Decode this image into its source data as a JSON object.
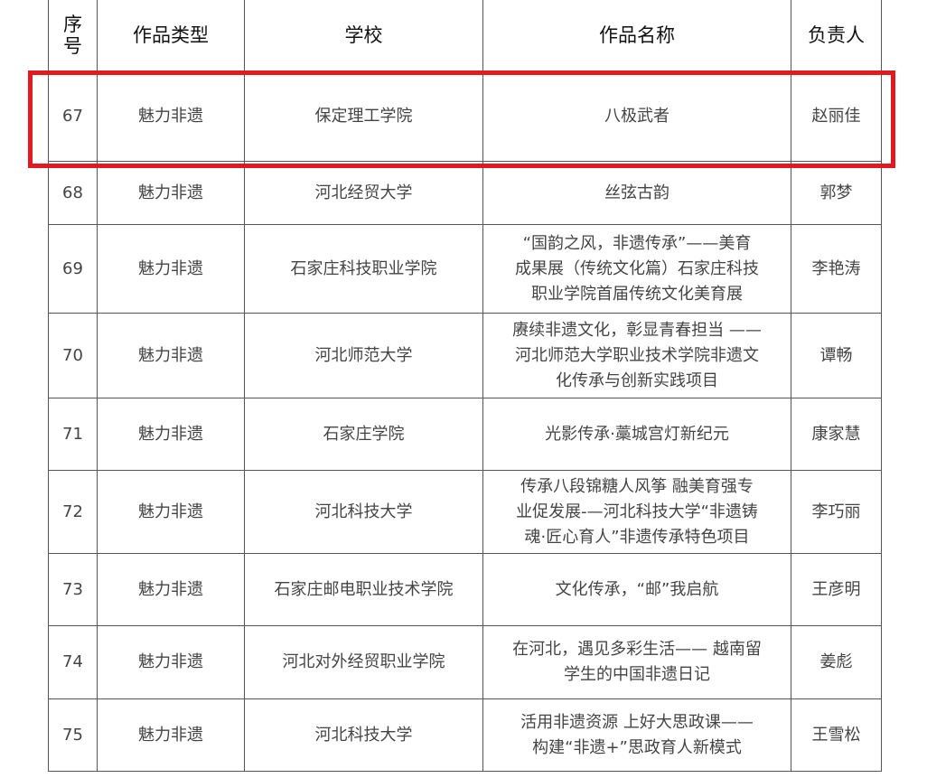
{
  "highlight_color": "#e2191e",
  "header": {
    "seq": [
      "序",
      "号"
    ],
    "type": "作品类型",
    "school": "学校",
    "name": "作品名称",
    "owner": "负责人"
  },
  "rows": [
    {
      "seq": "67",
      "type": "魅力非遗",
      "school": "保定理工学院",
      "name": [
        "八极武者"
      ],
      "owner": "赵丽佳"
    },
    {
      "seq": "68",
      "type": "魅力非遗",
      "school": "河北经贸大学",
      "name": [
        "丝弦古韵"
      ],
      "owner": "郭梦"
    },
    {
      "seq": "69",
      "type": "魅力非遗",
      "school": "石家庄科技职业学院",
      "name": [
        "“国韵之风，非遗传承”——美育",
        "成果展（传统文化篇）石家庄科技",
        "职业学院首届传统文化美育展"
      ],
      "owner": "李艳涛"
    },
    {
      "seq": "70",
      "type": "魅力非遗",
      "school": "河北师范大学",
      "name": [
        "赓续非遗文化，彰显青春担当 ——",
        "河北师范大学职业技术学院非遗文",
        "化传承与创新实践项目"
      ],
      "owner": "谭畅"
    },
    {
      "seq": "71",
      "type": "魅力非遗",
      "school": "石家庄学院",
      "name": [
        "光影传承·藁城宫灯新纪元"
      ],
      "owner": "康家慧"
    },
    {
      "seq": "72",
      "type": "魅力非遗",
      "school": "河北科技大学",
      "name": [
        "传承八段锦糖人风筝 融美育强专",
        "业促发展-—河北科技大学“非遗铸",
        "魂·匠心育人”非遗传承特色项目"
      ],
      "owner": "李巧丽"
    },
    {
      "seq": "73",
      "type": "魅力非遗",
      "school": "石家庄邮电职业技术学院",
      "name": [
        "文化传承，“邮”我启航"
      ],
      "owner": "王彦明"
    },
    {
      "seq": "74",
      "type": "魅力非遗",
      "school": "河北对外经贸职业学院",
      "name": [
        "在河北，遇见多彩生活—— 越南留",
        "学生的中国非遗日记"
      ],
      "owner": "姜彪"
    },
    {
      "seq": "75",
      "type": "魅力非遗",
      "school": "河北科技大学",
      "name": [
        "活用非遗资源 上好大思政课——",
        "构建“非遗+”思政育人新模式"
      ],
      "owner": "王雪松"
    }
  ]
}
